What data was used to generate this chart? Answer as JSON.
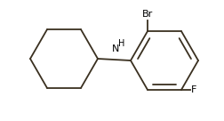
{
  "background_color": "#ffffff",
  "line_color": "#3a3020",
  "text_color": "#000000",
  "line_width": 1.3,
  "br_label": "Br",
  "f_label": "F",
  "nh_label": "H",
  "font_size_atoms": 8,
  "figsize": [
    2.53,
    1.36
  ],
  "dpi": 100
}
